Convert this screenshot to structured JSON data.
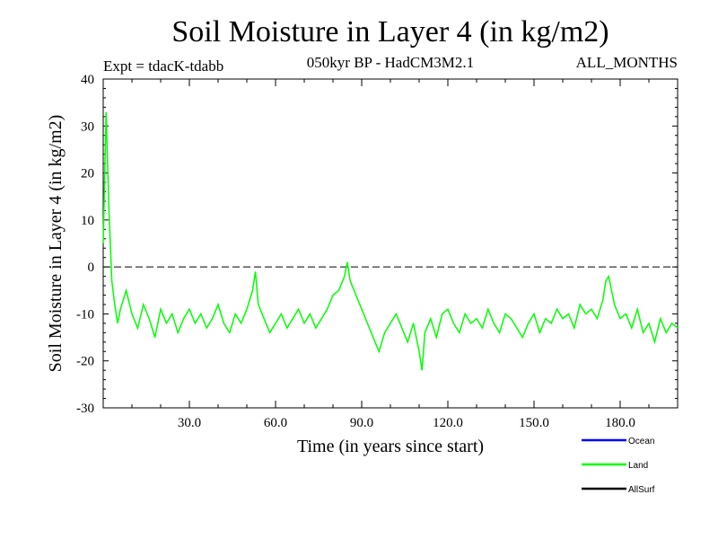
{
  "chart_data": {
    "type": "line",
    "title": "Soil Moisture in Layer 4 (in kg/m2)",
    "subtitle": "050kyr BP - HadCM3M2.1",
    "left_label": "Expt = tdacK-tdabb",
    "right_label": "ALL_MONTHS",
    "xlabel": "Time (in years since start)",
    "ylabel": "Soil Moisture in Layer 4 (in kg/m2)",
    "xlim": [
      0,
      200
    ],
    "ylim": [
      -30,
      40
    ],
    "x_ticks": [
      30,
      60,
      90,
      120,
      150,
      180
    ],
    "x_tick_labels": [
      "30.0",
      "60.0",
      "90.0",
      "120.0",
      "150.0",
      "180.0"
    ],
    "y_ticks": [
      -30,
      -20,
      -10,
      0,
      10,
      20,
      30,
      40
    ],
    "y_tick_labels": [
      "-30",
      "-20",
      "-10",
      "0",
      "10",
      "20",
      "30",
      "40"
    ],
    "reference_line": 0,
    "legend": [
      {
        "name": "Ocean",
        "color": "#0000ff"
      },
      {
        "name": "Land",
        "color": "#00ff00"
      },
      {
        "name": "AllSurf",
        "color": "#000000"
      }
    ],
    "series": [
      {
        "name": "Land",
        "color": "#00ff00",
        "x": [
          0,
          1,
          2,
          3,
          4,
          5,
          6,
          8,
          10,
          12,
          14,
          16,
          18,
          20,
          22,
          24,
          26,
          28,
          30,
          32,
          34,
          36,
          38,
          40,
          42,
          44,
          46,
          48,
          50,
          52,
          53,
          54,
          56,
          58,
          60,
          62,
          64,
          66,
          68,
          70,
          72,
          74,
          76,
          78,
          80,
          82,
          84,
          85,
          86,
          88,
          90,
          92,
          94,
          96,
          98,
          100,
          102,
          104,
          106,
          108,
          110,
          111,
          112,
          114,
          116,
          118,
          120,
          122,
          124,
          126,
          128,
          130,
          132,
          134,
          136,
          138,
          140,
          142,
          144,
          146,
          148,
          150,
          152,
          154,
          156,
          158,
          160,
          162,
          164,
          166,
          168,
          170,
          172,
          174,
          175,
          176,
          178,
          180,
          182,
          184,
          186,
          188,
          190,
          192,
          194,
          196,
          198,
          200
        ],
        "values": [
          5,
          33,
          12,
          -3,
          -8,
          -12,
          -9,
          -5,
          -10,
          -13,
          -8,
          -11,
          -15,
          -9,
          -12,
          -10,
          -14,
          -11,
          -9,
          -12,
          -10,
          -13,
          -11,
          -8,
          -12,
          -14,
          -10,
          -12,
          -9,
          -5,
          -1,
          -8,
          -11,
          -14,
          -12,
          -10,
          -13,
          -11,
          -9,
          -12,
          -10,
          -13,
          -11,
          -9,
          -6,
          -5,
          -2,
          1,
          -3,
          -6,
          -9,
          -12,
          -15,
          -18,
          -14,
          -12,
          -10,
          -13,
          -16,
          -12,
          -18,
          -22,
          -14,
          -11,
          -15,
          -10,
          -9,
          -12,
          -14,
          -10,
          -12,
          -11,
          -13,
          -9,
          -12,
          -14,
          -10,
          -11,
          -13,
          -15,
          -12,
          -10,
          -14,
          -11,
          -12,
          -9,
          -11,
          -10,
          -13,
          -8,
          -10,
          -9,
          -11,
          -7,
          -3,
          -2,
          -8,
          -11,
          -10,
          -13,
          -9,
          -14,
          -12,
          -16,
          -11,
          -14,
          -12,
          -13
        ]
      }
    ]
  }
}
